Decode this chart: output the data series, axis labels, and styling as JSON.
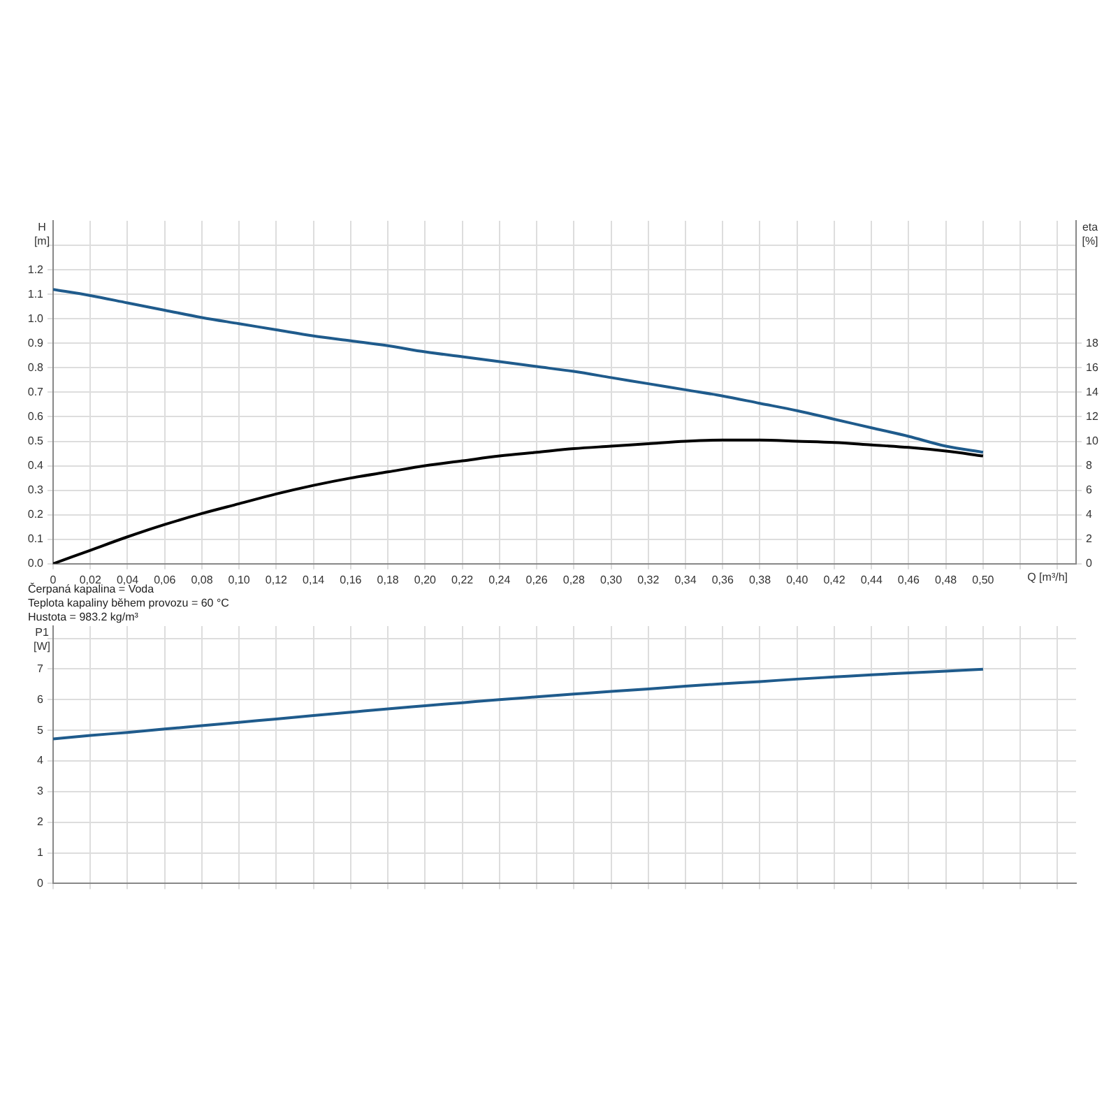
{
  "chart_data": [
    {
      "type": "line",
      "xlabel": "Q [m³/h]",
      "ylabel": "H [m]",
      "y2label": "eta [%]",
      "grid": true,
      "legend": false,
      "xlim": [
        0,
        0.55
      ],
      "xticks": [
        0,
        {
          "value": 0.02,
          "label": "0,02"
        },
        {
          "value": 0.04,
          "label": "0,04"
        },
        {
          "value": 0.06,
          "label": "0,06"
        },
        {
          "value": 0.08,
          "label": "0,08"
        },
        {
          "value": 0.1,
          "label": "0,10"
        },
        {
          "value": 0.12,
          "label": "0,12"
        },
        {
          "value": 0.14,
          "label": "0,14"
        },
        {
          "value": 0.16,
          "label": "0,16"
        },
        {
          "value": 0.18,
          "label": "0,18"
        },
        {
          "value": 0.2,
          "label": "0,20"
        },
        {
          "value": 0.22,
          "label": "0,22"
        },
        {
          "value": 0.24,
          "label": "0,24"
        },
        {
          "value": 0.26,
          "label": "0,26"
        },
        {
          "value": 0.28,
          "label": "0,28"
        },
        {
          "value": 0.3,
          "label": "0,30"
        },
        {
          "value": 0.32,
          "label": "0,32"
        },
        {
          "value": 0.34,
          "label": "0,34"
        },
        {
          "value": 0.36,
          "label": "0,36"
        },
        {
          "value": 0.38,
          "label": "0,38"
        },
        {
          "value": 0.4,
          "label": "0,40"
        },
        {
          "value": 0.42,
          "label": "0,42"
        },
        {
          "value": 0.44,
          "label": "0,44"
        },
        {
          "value": 0.46,
          "label": "0,46"
        },
        {
          "value": 0.48,
          "label": "0,48"
        },
        {
          "value": 0.5,
          "label": "0,50"
        },
        {
          "value": 0.52,
          "label": null
        },
        {
          "value": 0.54,
          "label": null
        }
      ],
      "ylim": [
        0,
        1.4
      ],
      "yticks": [
        {
          "value": 0,
          "label": "0.0"
        },
        0.1,
        0.2,
        0.3,
        0.4,
        0.5,
        0.6,
        0.7,
        0.8,
        0.9,
        {
          "value": 1,
          "label": "1.0"
        },
        1.1,
        1.2,
        {
          "value": 1.3,
          "label": null
        }
      ],
      "y2lim": [
        0,
        28
      ],
      "y2ticks": [
        0,
        2,
        4,
        6,
        8,
        10,
        12,
        14,
        16,
        18
      ],
      "x": [
        0,
        0.02,
        0.04,
        0.06,
        0.08,
        0.1,
        0.12,
        0.14,
        0.16,
        0.18,
        0.2,
        0.22,
        0.24,
        0.26,
        0.28,
        0.3,
        0.32,
        0.34,
        0.36,
        0.38,
        0.4,
        0.42,
        0.44,
        0.46,
        0.48,
        0.5
      ],
      "series": [
        {
          "color": "#1f5b8c",
          "values": [
            1.12,
            1.095,
            1.065,
            1.035,
            1.005,
            0.98,
            0.955,
            0.93,
            0.91,
            0.89,
            0.865,
            0.845,
            0.825,
            0.805,
            0.785,
            0.76,
            0.735,
            0.71,
            0.685,
            0.655,
            0.625,
            0.59,
            0.555,
            0.52,
            0.48,
            0.455
          ]
        },
        {
          "color": "#000000",
          "axis": "y2",
          "values": [
            0,
            1.1,
            2.2,
            3.2,
            4.1,
            4.9,
            5.7,
            6.4,
            7.0,
            7.5,
            8.0,
            8.4,
            8.8,
            9.1,
            9.4,
            9.6,
            9.8,
            10.0,
            10.1,
            10.1,
            10.0,
            9.9,
            9.7,
            9.5,
            9.2,
            8.8
          ]
        }
      ],
      "annotations": [
        "Čerpaná kapalina = Voda",
        "Teplota kapaliny během provozu = 60 °C",
        "Hustota = 983.2 kg/m³"
      ]
    },
    {
      "type": "line",
      "ylabel": "P1 [W]",
      "grid": true,
      "legend": false,
      "tick_labels": "y",
      "xlim": [
        0,
        0.55
      ],
      "xticks": [
        0,
        0.02,
        0.04,
        0.06,
        0.08,
        0.1,
        0.12,
        0.14,
        0.16,
        0.18,
        0.2,
        0.22,
        0.24,
        0.26,
        0.28,
        0.3,
        0.32,
        0.34,
        0.36,
        0.38,
        0.4,
        0.42,
        0.44,
        0.46,
        0.48,
        0.5,
        0.52,
        0.54
      ],
      "ylim": [
        0,
        8.4
      ],
      "yticks": [
        0,
        1,
        2,
        3,
        4,
        5,
        6,
        7,
        {
          "value": 8,
          "label": null
        }
      ],
      "x": [
        0,
        0.02,
        0.04,
        0.06,
        0.08,
        0.1,
        0.12,
        0.14,
        0.16,
        0.18,
        0.2,
        0.22,
        0.24,
        0.26,
        0.28,
        0.3,
        0.32,
        0.34,
        0.36,
        0.38,
        0.4,
        0.42,
        0.44,
        0.46,
        0.48,
        0.5
      ],
      "series": [
        {
          "color": "#1f5b8c",
          "values": [
            4.72,
            4.83,
            4.93,
            5.04,
            5.15,
            5.26,
            5.37,
            5.48,
            5.59,
            5.7,
            5.8,
            5.9,
            6.0,
            6.09,
            6.18,
            6.27,
            6.35,
            6.44,
            6.52,
            6.59,
            6.67,
            6.74,
            6.81,
            6.87,
            6.93,
            6.99
          ]
        }
      ]
    }
  ]
}
